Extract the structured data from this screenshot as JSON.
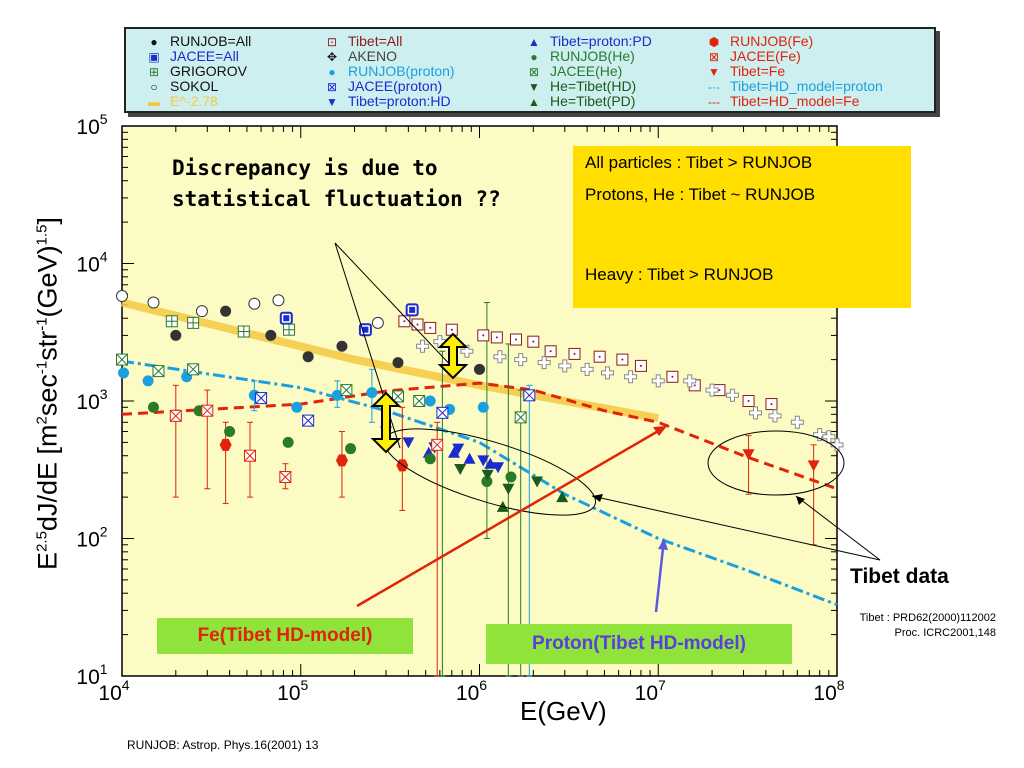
{
  "legend": [
    {
      "label": "RUNJOB=All",
      "color": "#111111",
      "sym": "●"
    },
    {
      "label": "JACEE=All",
      "color": "#1a2bd0",
      "sym": "▣"
    },
    {
      "label": "GRIGOROV",
      "color": "#2a7a2a",
      "sym": "⊞"
    },
    {
      "label": "SOKOL",
      "color": "#111111",
      "sym": "○"
    },
    {
      "label": "E^-2.78",
      "color": "#f5c842",
      "sym": "▬"
    },
    {
      "label": "Tibet=All",
      "color": "#8b1a1a",
      "sym": "⊡"
    },
    {
      "label": "AKENO",
      "color": "#111111",
      "sym": "✥"
    },
    {
      "label": "RUNJOB(proton)",
      "color": "#1aa0e0",
      "sym": "●"
    },
    {
      "label": "JACEE(proton)",
      "color": "#1a2bd0",
      "sym": "⊠"
    },
    {
      "label": "Tibet=proton:HD",
      "color": "#1a2bd0",
      "sym": "▼"
    },
    {
      "label": "Tibet=proton:PD",
      "color": "#1a2bd0",
      "sym": "▲"
    },
    {
      "label": "RUNJOB(He)",
      "color": "#2a7a2a",
      "sym": "●"
    },
    {
      "label": "JACEE(He)",
      "color": "#2a7a2a",
      "sym": "⊠"
    },
    {
      "label": "He=Tibet(HD)",
      "color": "#1a5a1a",
      "sym": "▼"
    },
    {
      "label": "He=Tibet(PD)",
      "color": "#1a5a1a",
      "sym": "▲"
    },
    {
      "label": "RUNJOB(Fe)",
      "color": "#e0230a",
      "sym": "⬢"
    },
    {
      "label": "JACEE(Fe)",
      "color": "#e0230a",
      "sym": "⊠"
    },
    {
      "label": "Tibet=Fe",
      "color": "#e0230a",
      "sym": "▼"
    },
    {
      "label": "Tibet=HD_model=proton",
      "color": "#1aa0e0",
      "sym": "-·-"
    },
    {
      "label": "Tibet=HD_model=Fe",
      "color": "#e0230a",
      "sym": "---"
    }
  ],
  "axes": {
    "ylabel": "E^2.5dJ/dE [m^2sec^-1str^-1(GeV)^1.5]",
    "xlabel": "E(GeV)",
    "xticks": [
      "10^4",
      "10^5",
      "10^6",
      "10^7",
      "10^8"
    ],
    "yticks": [
      "10^1",
      "10^2",
      "10^3",
      "10^4",
      "10^5"
    ]
  },
  "annotations": {
    "discrepancy_line1": "Discrepancy is due to",
    "discrepancy_line2": "statistical fluctuation ??",
    "box_line1": "All particles : Tibet >  RUNJOB",
    "box_line2": "Protons, He  : Tibet ~ RUNJOB",
    "box_line3": "Heavy         : Tibet > RUNJOB",
    "fe_label": "Fe(Tibet HD-model)",
    "proton_label": "Proton(Tibet HD-model)",
    "tibet_label": "Tibet data",
    "tibet_ref_line1": "Tibet : PRD62(2000)112002",
    "tibet_ref_line2": "Proc. ICRC2001,148",
    "footer": "RUNJOB: Astrop. Phys.16(2001) 13"
  },
  "colors": {
    "plot_bg": "#fbfbc3",
    "legend_bg": "#cdeff0",
    "highlight": "#ffde00",
    "label_bg": "#8fe33a"
  },
  "chart_data": {
    "type": "scatter",
    "x_scale": "log",
    "y_scale": "log",
    "xlim": [
      10000,
      100000000
    ],
    "ylim": [
      10,
      100000
    ],
    "series": [
      {
        "name": "RUNJOB=All",
        "color": "#333333",
        "marker": "circle",
        "points": [
          [
            20000,
            3000
          ],
          [
            38000,
            4500
          ],
          [
            68000,
            3000
          ],
          [
            110000,
            2100
          ],
          [
            170000,
            2500
          ],
          [
            350000,
            1900
          ],
          [
            1000000,
            1700
          ]
        ]
      },
      {
        "name": "Tibet=All",
        "color": "#8b1a1a",
        "marker": "square-open",
        "points": [
          [
            380000,
            3800
          ],
          [
            450000,
            3600
          ],
          [
            530000,
            3400
          ],
          [
            700000,
            3300
          ],
          [
            1050000,
            3000
          ],
          [
            1250000,
            2900
          ],
          [
            1600000,
            2800
          ],
          [
            2000000,
            2700
          ],
          [
            2500000,
            2300
          ],
          [
            3400000,
            2200
          ],
          [
            4700000,
            2100
          ],
          [
            6300000,
            2000
          ],
          [
            8000000,
            1800
          ],
          [
            12000000,
            1500
          ],
          [
            16000000,
            1300
          ],
          [
            22000000,
            1200
          ],
          [
            32000000,
            1000
          ],
          [
            43000000,
            950
          ]
        ]
      },
      {
        "name": "AKENO",
        "color": "#888888",
        "marker": "plus-open",
        "points": [
          [
            480000,
            2500
          ],
          [
            600000,
            2700
          ],
          [
            850000,
            2300
          ],
          [
            1300000,
            2100
          ],
          [
            1700000,
            2000
          ],
          [
            2300000,
            1900
          ],
          [
            3000000,
            1800
          ],
          [
            4000000,
            1700
          ],
          [
            5200000,
            1600
          ],
          [
            7000000,
            1500
          ],
          [
            10000000,
            1400
          ],
          [
            15000000,
            1400
          ],
          [
            20000000,
            1200
          ],
          [
            26000000,
            1100
          ],
          [
            35000000,
            820
          ],
          [
            45000000,
            780
          ],
          [
            60000000,
            700
          ],
          [
            80000000,
            570
          ],
          [
            90000000,
            550
          ],
          [
            100000000,
            480
          ]
        ]
      },
      {
        "name": "SOKOL",
        "color": "#333333",
        "marker": "circle-open",
        "points": [
          [
            10000,
            5800
          ],
          [
            15000,
            5200
          ],
          [
            28000,
            4500
          ],
          [
            55000,
            5100
          ],
          [
            75000,
            5400
          ],
          [
            270000,
            3700
          ]
        ]
      },
      {
        "name": "JACEE=All",
        "color": "#1a2bd0",
        "marker": "jacee",
        "points": [
          [
            83000,
            4000
          ],
          [
            420000,
            4600
          ],
          [
            230000,
            3300
          ]
        ]
      },
      {
        "name": "GRIGOROV",
        "color": "#2a7a2a",
        "marker": "grid",
        "points": [
          [
            19000,
            3800
          ],
          [
            25000,
            3700
          ],
          [
            48000,
            3200
          ],
          [
            86000,
            3300
          ]
        ]
      },
      {
        "name": "RUNJOB(proton)",
        "color": "#1aa0e0",
        "marker": "circle",
        "points": [
          [
            10200,
            1600
          ],
          [
            14000,
            1400
          ],
          [
            23000,
            1500
          ],
          [
            55000,
            1100
          ],
          [
            95000,
            900
          ],
          [
            160000,
            1100
          ],
          [
            250000,
            1150
          ],
          [
            530000,
            1000
          ],
          [
            680000,
            870
          ],
          [
            1050000,
            900
          ]
        ]
      },
      {
        "name": "JACEE(proton)",
        "color": "#1a2bd0",
        "marker": "xbox",
        "points": [
          [
            60000,
            1050
          ],
          [
            110000,
            720
          ],
          [
            620000,
            820
          ],
          [
            1900000,
            1100
          ]
        ]
      },
      {
        "name": "Tibet=proton:HD",
        "color": "#1a2bd0",
        "marker": "tri-down",
        "points": [
          [
            300000,
            600
          ],
          [
            400000,
            500
          ],
          [
            560000,
            460
          ],
          [
            760000,
            450
          ],
          [
            1050000,
            370
          ],
          [
            1270000,
            330
          ]
        ]
      },
      {
        "name": "Tibet=proton:PD",
        "color": "#1a2bd0",
        "marker": "tri-up",
        "points": [
          [
            520000,
            420
          ],
          [
            720000,
            420
          ],
          [
            880000,
            380
          ],
          [
            1150000,
            350
          ]
        ]
      },
      {
        "name": "RUNJOB(He)",
        "color": "#2a7a2a",
        "marker": "circle",
        "points": [
          [
            15000,
            900
          ],
          [
            27000,
            850
          ],
          [
            40000,
            600
          ],
          [
            85000,
            500
          ],
          [
            190000,
            450
          ],
          [
            530000,
            380
          ],
          [
            1100000,
            260
          ],
          [
            1500000,
            280
          ]
        ]
      },
      {
        "name": "JACEE(He)",
        "color": "#2a7a2a",
        "marker": "xbox",
        "points": [
          [
            10000,
            2000
          ],
          [
            16000,
            1650
          ],
          [
            25000,
            1700
          ],
          [
            180000,
            1200
          ],
          [
            350000,
            1080
          ],
          [
            460000,
            1000
          ],
          [
            1700000,
            760
          ]
        ]
      },
      {
        "name": "He=Tibet(HD)",
        "color": "#1a5a1a",
        "marker": "tri-down",
        "points": [
          [
            780000,
            320
          ],
          [
            1110000,
            290
          ],
          [
            1450000,
            230
          ],
          [
            2100000,
            260
          ]
        ]
      },
      {
        "name": "He=Tibet(PD)",
        "color": "#1a5a1a",
        "marker": "tri-up",
        "points": [
          [
            1350000,
            170
          ],
          [
            2900000,
            200
          ]
        ]
      },
      {
        "name": "RUNJOB(Fe)",
        "color": "#e0230a",
        "marker": "hex",
        "points": [
          [
            38000,
            480
          ],
          [
            170000,
            370
          ],
          [
            370000,
            340
          ]
        ]
      },
      {
        "name": "JACEE(Fe)",
        "color": "#e0230a",
        "marker": "xbox",
        "points": [
          [
            20000,
            780
          ],
          [
            30000,
            850
          ],
          [
            52000,
            400
          ],
          [
            82000,
            280
          ],
          [
            580000,
            480
          ]
        ]
      },
      {
        "name": "Tibet=Fe",
        "color": "#e0230a",
        "marker": "tri-down",
        "points": [
          [
            32000000,
            410
          ],
          [
            74000000,
            340
          ]
        ]
      }
    ],
    "lines": [
      {
        "name": "E^-2.78",
        "color": "#f5c842",
        "style": "solid",
        "points": [
          [
            10000,
            5200
          ],
          [
            200000,
            2000
          ],
          [
            1000000,
            1300
          ],
          [
            10000000,
            750
          ]
        ]
      },
      {
        "name": "Tibet=HD_model=proton",
        "color": "#1aa0e0",
        "style": "dashdot",
        "points": [
          [
            10000,
            1950
          ],
          [
            100000,
            1250
          ],
          [
            300000,
            850
          ],
          [
            1000000,
            500
          ],
          [
            3000000,
            210
          ],
          [
            10000000,
            100
          ],
          [
            30000000,
            60
          ],
          [
            100000000,
            33
          ]
        ]
      },
      {
        "name": "Tibet=HD_model=Fe",
        "color": "#e0230a",
        "style": "dashed",
        "points": [
          [
            10000,
            800
          ],
          [
            100000,
            950
          ],
          [
            300000,
            1180
          ],
          [
            1000000,
            1350
          ],
          [
            2000000,
            1200
          ],
          [
            5000000,
            850
          ],
          [
            10000000,
            700
          ],
          [
            30000000,
            400
          ],
          [
            100000000,
            230
          ]
        ]
      }
    ]
  }
}
